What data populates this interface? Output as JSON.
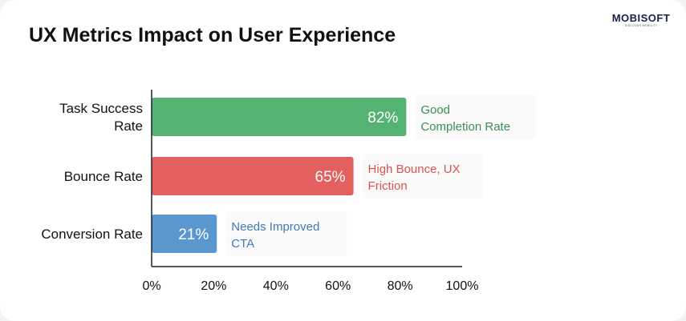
{
  "header": {
    "title": "UX Metrics Impact on User Experience",
    "logo_text": "MOBISOFT",
    "logo_tagline": "DISCOVER MOBILITY"
  },
  "chart_data": {
    "type": "bar",
    "orientation": "horizontal",
    "title": "UX Metrics Impact on User Experience",
    "categories": [
      {
        "lines": [
          "Task Success",
          "Rate"
        ],
        "value": 82,
        "value_label": "82%",
        "color": "#54b272",
        "annotation": [
          "Good",
          "Completion Rate"
        ],
        "annotation_color": "#3a8f55"
      },
      {
        "lines": [
          "Bounce Rate"
        ],
        "value": 65,
        "value_label": "65%",
        "color": "#e4605f",
        "annotation": [
          "High Bounce, UX",
          "Friction"
        ],
        "annotation_color": "#d9534f"
      },
      {
        "lines": [
          "Conversion Rate"
        ],
        "value": 21,
        "value_label": "21%",
        "color": "#5b97cf",
        "annotation": [
          "Needs Improved",
          "CTA"
        ],
        "annotation_color": "#3f7ab8"
      }
    ],
    "xlim": [
      0,
      100
    ],
    "xticks": [
      "0%",
      "20%",
      "40%",
      "60%",
      "80%",
      "100%"
    ],
    "xlabel": "",
    "ylabel": "",
    "grid": false
  }
}
